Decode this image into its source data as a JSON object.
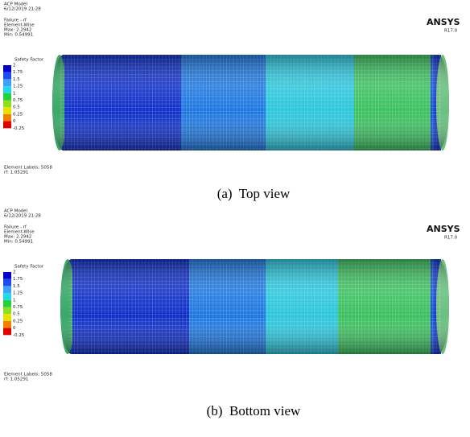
{
  "panels": [
    {
      "header": [
        "ACP Model",
        "6/12/2019 21:28"
      ],
      "result": [
        "Failure - rf",
        "Element-Wise",
        "Max: 2.2942",
        "Min: 0.54991"
      ],
      "logo": "ANSYS",
      "version": "R17.0",
      "legend": {
        "title": "Safety Factor",
        "labels": [
          2,
          1.75,
          1.5,
          1.25,
          1,
          0.75,
          0.5,
          0.25,
          0,
          -0.25
        ]
      },
      "footer": [
        "Element Labels: 5058",
        "rf: 1.05291"
      ],
      "caption": "(a)  Top view"
    },
    {
      "header": [
        "ACP Model",
        "6/12/2019 21:28"
      ],
      "result": [
        "Failure - rf",
        "Element-Wise",
        "Max: 2.2942",
        "Min: 0.54991"
      ],
      "logo": "ANSYS",
      "version": "R17.0",
      "legend": {
        "title": "Safety Factor",
        "labels": [
          2,
          1.75,
          1.5,
          1.25,
          1,
          0.75,
          0.5,
          0.25,
          0,
          -0.25
        ]
      },
      "footer": [
        "Element Labels: 5058",
        "rf: 1.05291"
      ],
      "caption": "(b)  Bottom view"
    }
  ]
}
